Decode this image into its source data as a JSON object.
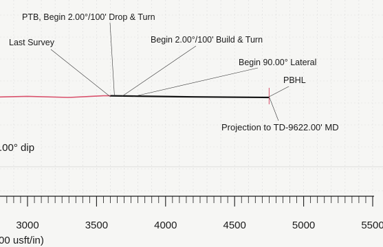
{
  "chart_data": {
    "type": "line",
    "title": "",
    "xlabel": "00 usft/in)",
    "ylabel": "",
    "grid": true,
    "x_ticks": [
      3000,
      3500,
      4000,
      4500,
      5000,
      5500
    ],
    "x_tick_labels": [
      "3000",
      "3500",
      "4000",
      "4500",
      "5000",
      "5500"
    ],
    "xlim": [
      2640,
      5520
    ],
    "series": [
      {
        "name": "",
        "color": "#d9506b",
        "points": [
          [
            2640,
            0.0
          ],
          [
            3000,
            0.2
          ],
          [
            3300,
            0.0
          ],
          [
            3550,
            0.3
          ],
          [
            3600,
            0.3
          ]
        ]
      },
      {
        "name": "",
        "color": "#111111",
        "points": [
          [
            3600,
            0.3
          ],
          [
            4200,
            0.1
          ],
          [
            4750,
            0.0
          ]
        ]
      }
    ],
    "annotations": [
      {
        "text": "PTB, Begin 2.00°/100' Drop & Turn",
        "x": 3630,
        "color": "#1a1a1a"
      },
      {
        "text": "Last Survey",
        "x": 3600,
        "color": "#1a1a1a"
      },
      {
        "text": "Begin 2.00°/100' Build & Turn",
        "x": 3680,
        "color": "#1a1a1a"
      },
      {
        "text": "Begin 90.00° Lateral",
        "x": 3760,
        "color": "#1a1a1a"
      },
      {
        "text": "PBHL",
        "x": 4750,
        "color": "#1a1a1a"
      },
      {
        "text": "Projection to TD-9622.00' MD",
        "x": 4750,
        "color": "#d9506b"
      }
    ],
    "dip_label": ".00° dip"
  }
}
